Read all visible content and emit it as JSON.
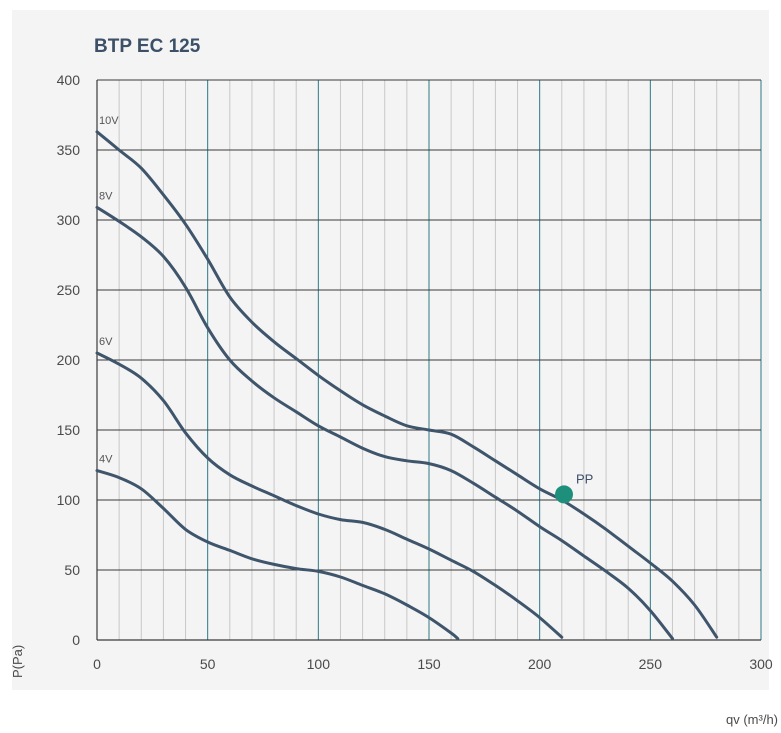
{
  "chart_data": {
    "type": "line",
    "title": "BTP EC 125",
    "xlabel": "qv (m³/h)",
    "ylabel": "P(Pa)",
    "xlim": [
      0,
      300
    ],
    "ylim": [
      0,
      400
    ],
    "x_ticks": [
      0,
      50,
      100,
      150,
      200,
      250,
      300
    ],
    "y_ticks": [
      0,
      50,
      100,
      150,
      200,
      250,
      300,
      350,
      400
    ],
    "x_tick_labels": [
      "0",
      "50",
      "100",
      "150",
      "200",
      "250",
      "300"
    ],
    "y_tick_labels": [
      "0",
      "50",
      "100",
      "150",
      "200",
      "250",
      "300",
      "350",
      "400"
    ],
    "grid": true,
    "series": [
      {
        "name": "10V",
        "color": "#3f556b",
        "points": [
          [
            0,
            363
          ],
          [
            10,
            350
          ],
          [
            20,
            337
          ],
          [
            30,
            318
          ],
          [
            40,
            297
          ],
          [
            50,
            272
          ],
          [
            60,
            245
          ],
          [
            70,
            227
          ],
          [
            80,
            213
          ],
          [
            90,
            201
          ],
          [
            100,
            189
          ],
          [
            110,
            178
          ],
          [
            120,
            168
          ],
          [
            130,
            160
          ],
          [
            140,
            153
          ],
          [
            150,
            150
          ],
          [
            160,
            147
          ],
          [
            170,
            138
          ],
          [
            180,
            128
          ],
          [
            190,
            118
          ],
          [
            200,
            108
          ],
          [
            210,
            100
          ],
          [
            220,
            90
          ],
          [
            230,
            79
          ],
          [
            240,
            67
          ],
          [
            250,
            55
          ],
          [
            260,
            42
          ],
          [
            270,
            25
          ],
          [
            280,
            2
          ]
        ]
      },
      {
        "name": "8V",
        "color": "#3f556b",
        "points": [
          [
            0,
            309
          ],
          [
            10,
            299
          ],
          [
            20,
            288
          ],
          [
            30,
            274
          ],
          [
            40,
            252
          ],
          [
            50,
            223
          ],
          [
            60,
            200
          ],
          [
            70,
            185
          ],
          [
            80,
            173
          ],
          [
            90,
            163
          ],
          [
            100,
            153
          ],
          [
            110,
            145
          ],
          [
            120,
            137
          ],
          [
            130,
            131
          ],
          [
            140,
            128
          ],
          [
            150,
            126
          ],
          [
            160,
            121
          ],
          [
            170,
            112
          ],
          [
            180,
            102
          ],
          [
            190,
            92
          ],
          [
            200,
            81
          ],
          [
            210,
            71
          ],
          [
            220,
            60
          ],
          [
            230,
            49
          ],
          [
            240,
            37
          ],
          [
            250,
            21
          ],
          [
            260,
            1
          ]
        ]
      },
      {
        "name": "6V",
        "color": "#3f556b",
        "points": [
          [
            0,
            205
          ],
          [
            10,
            197
          ],
          [
            20,
            187
          ],
          [
            30,
            171
          ],
          [
            40,
            148
          ],
          [
            50,
            130
          ],
          [
            60,
            118
          ],
          [
            70,
            110
          ],
          [
            80,
            103
          ],
          [
            90,
            96
          ],
          [
            100,
            90
          ],
          [
            110,
            86
          ],
          [
            120,
            84
          ],
          [
            130,
            79
          ],
          [
            140,
            72
          ],
          [
            150,
            65
          ],
          [
            160,
            57
          ],
          [
            170,
            49
          ],
          [
            180,
            39
          ],
          [
            190,
            28
          ],
          [
            200,
            16
          ],
          [
            210,
            2
          ]
        ]
      },
      {
        "name": "4V",
        "color": "#3f556b",
        "points": [
          [
            0,
            121
          ],
          [
            10,
            116
          ],
          [
            20,
            108
          ],
          [
            30,
            94
          ],
          [
            40,
            79
          ],
          [
            50,
            70
          ],
          [
            60,
            64
          ],
          [
            70,
            58
          ],
          [
            80,
            54
          ],
          [
            90,
            51
          ],
          [
            100,
            49
          ],
          [
            110,
            45
          ],
          [
            120,
            39
          ],
          [
            130,
            33
          ],
          [
            140,
            25
          ],
          [
            150,
            16
          ],
          [
            160,
            5
          ],
          [
            163,
            1
          ]
        ]
      }
    ],
    "points": [
      {
        "name": "PP",
        "x": 211,
        "y": 104,
        "color": "#1e8f7a"
      }
    ],
    "style": {
      "plot_background": "#f4f4f4",
      "major_grid_color": "#2e7a86",
      "minor_grid_color": "#c8c8c8",
      "horizontal_grid_color": "#3a3a3a",
      "title_color": "#3c5068"
    }
  }
}
